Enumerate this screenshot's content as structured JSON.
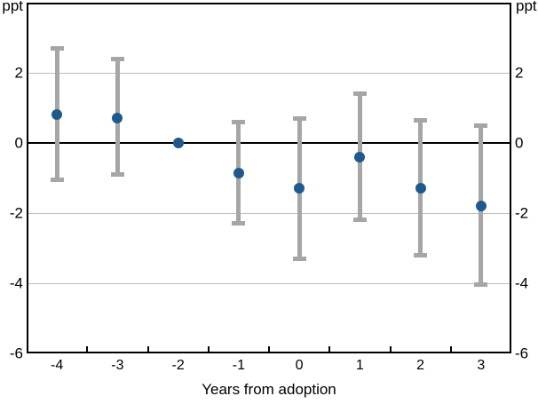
{
  "units": {
    "left": "ppt",
    "right": "ppt"
  },
  "chart_data": {
    "type": "scatter",
    "title": "",
    "xlabel": "Years from adoption",
    "ylabel": "ppt",
    "x": [
      -4,
      -3,
      -2,
      -1,
      0,
      1,
      2,
      3
    ],
    "x_tick_labels": [
      "-4",
      "-3",
      "-2",
      "-1",
      "0",
      "1",
      "2",
      "3"
    ],
    "values": [
      0.8,
      0.7,
      0,
      -0.85,
      -1.3,
      -0.4,
      -1.3,
      -1.8
    ],
    "ci_high": [
      2.7,
      2.4,
      null,
      0.6,
      0.7,
      1.4,
      0.65,
      0.5
    ],
    "ci_low": [
      -1.05,
      -0.9,
      null,
      -2.3,
      -3.3,
      -2.2,
      -3.2,
      -4.05
    ],
    "ylim": [
      -6,
      4
    ],
    "yticks": [
      2,
      0,
      -2,
      -4,
      -6
    ],
    "grid": true,
    "legend": "none",
    "zero_line": true,
    "colors": {
      "point": "#1e5a8d",
      "error_bar": "#a6a6a6",
      "gridline": "#bdbdbd",
      "zero_line": "#000000",
      "axis": "#000000"
    }
  }
}
